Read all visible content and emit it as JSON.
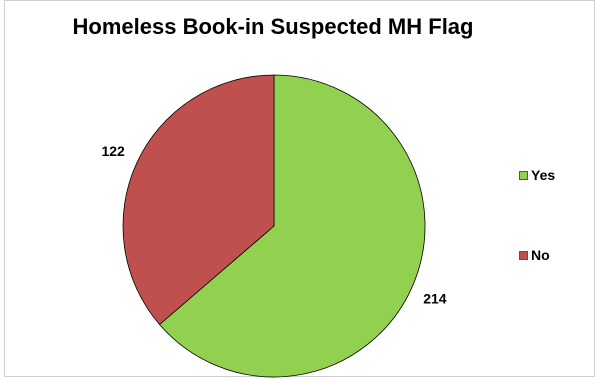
{
  "chart_data": {
    "type": "pie",
    "title": "Homeless Book-in Suspected MH Flag",
    "categories": [
      "Yes",
      "No"
    ],
    "values": [
      214,
      122
    ],
    "colors": [
      "#92d050",
      "#c0504d"
    ],
    "legend_position": "right"
  }
}
